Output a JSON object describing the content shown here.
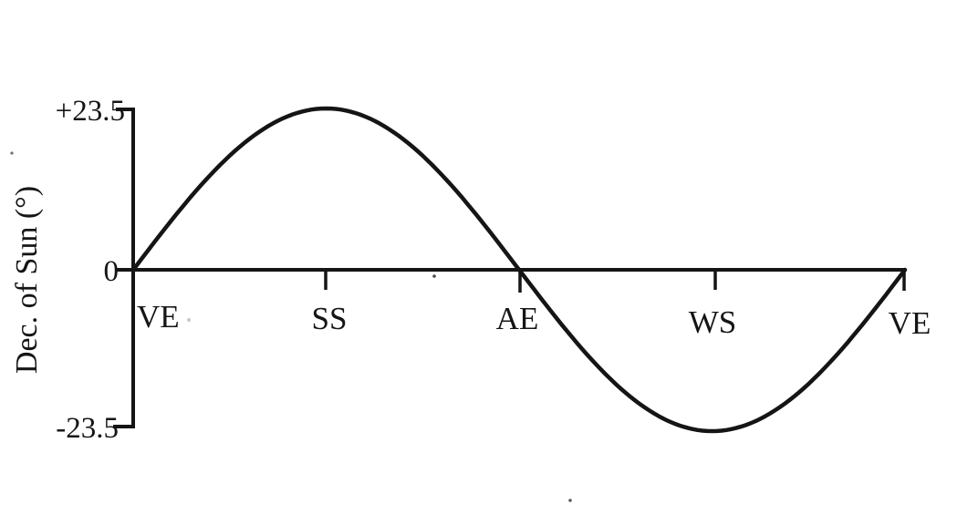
{
  "figure": {
    "background": "#ffffff",
    "ink_color": "#151515"
  },
  "chart_data": {
    "type": "line",
    "shape": "sinusoid",
    "title": "",
    "xlabel": "",
    "ylabel": "Dec. of Sun (°)",
    "categories": [
      "VE",
      "SS",
      "AE",
      "WS",
      "VE"
    ],
    "values": [
      0,
      23.5,
      0,
      -23.5,
      0
    ],
    "yticks": [
      "+23.5",
      "0",
      "-23.5"
    ],
    "ytick_values": [
      23.5,
      0,
      -23.5
    ],
    "ylim": [
      -23.5,
      23.5
    ],
    "grid": false,
    "legend_position": "none"
  }
}
